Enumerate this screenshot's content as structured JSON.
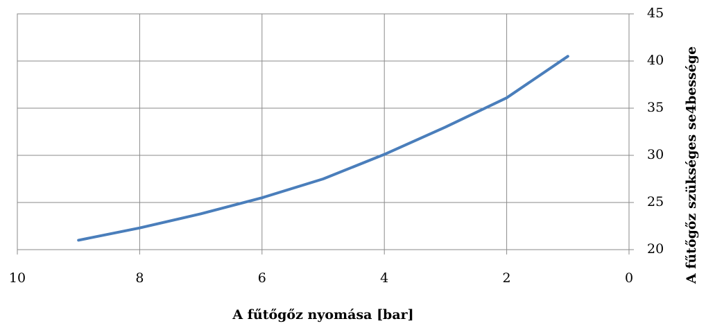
{
  "chart_data": {
    "type": "line",
    "x_label": "A fűtőgőz nyomása [bar]",
    "y_label": "A fűtőgőz szükséges se4bessége",
    "x": [
      9,
      8,
      7,
      6,
      5,
      4,
      3,
      2,
      1
    ],
    "series": [
      {
        "name": "A fűtőgőz szükséges se4bessége",
        "color": "#4a7ebb",
        "values": [
          21.0,
          22.3,
          23.8,
          25.5,
          27.5,
          30.1,
          33.0,
          36.1,
          40.5
        ]
      }
    ],
    "xlim": [
      10,
      0
    ],
    "xticks": [
      10,
      8,
      6,
      4,
      2,
      0
    ],
    "ylim": [
      20,
      45
    ],
    "yticks": [
      20,
      25,
      30,
      35,
      40,
      45
    ],
    "grid": true
  }
}
